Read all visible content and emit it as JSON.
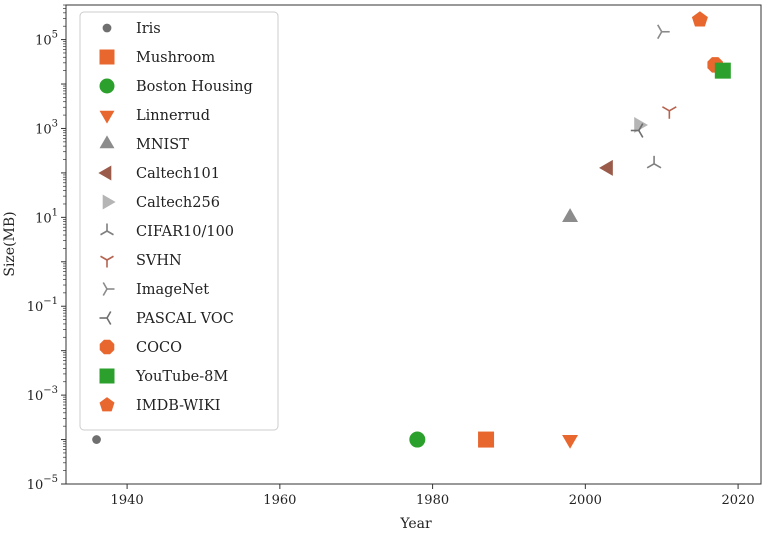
{
  "chart_data": {
    "type": "scatter",
    "xlabel": "Year",
    "ylabel": "Size(MB)",
    "yscale": "log",
    "xlim": [
      1932,
      2023
    ],
    "ylim": [
      1e-05,
      600000.0
    ],
    "x_ticks": [
      {
        "value": 1940,
        "label": "1940"
      },
      {
        "value": 1960,
        "label": "1960"
      },
      {
        "value": 1980,
        "label": "1980"
      },
      {
        "value": 2000,
        "label": "2000"
      },
      {
        "value": 2020,
        "label": "2020"
      }
    ],
    "y_ticks": [
      {
        "exp": -5,
        "base": "10",
        "power": "−5"
      },
      {
        "exp": -3,
        "base": "10",
        "power": "−3"
      },
      {
        "exp": -1,
        "base": "10",
        "power": "−1"
      },
      {
        "exp": 1,
        "base": "10",
        "power": "1"
      },
      {
        "exp": 3,
        "base": "10",
        "power": "3"
      },
      {
        "exp": 5,
        "base": "10",
        "power": "5"
      }
    ],
    "grid": false,
    "legend_position": "upper-left",
    "series": [
      {
        "name": "Iris",
        "marker": "dot",
        "color": "#6f6f6f",
        "points": [
          {
            "x": 1936,
            "y": 0.0001
          }
        ]
      },
      {
        "name": "Mushroom",
        "marker": "square",
        "color": "#e8672f",
        "points": [
          {
            "x": 1987,
            "y": 0.0001
          }
        ]
      },
      {
        "name": "Boston Housing",
        "marker": "circle",
        "color": "#2ca02c",
        "points": [
          {
            "x": 1978,
            "y": 0.0001
          }
        ]
      },
      {
        "name": "Linnerrud",
        "marker": "triangle-down",
        "color": "#e8672f",
        "points": [
          {
            "x": 1998,
            "y": 0.0001
          }
        ]
      },
      {
        "name": "MNIST",
        "marker": "triangle-up",
        "color": "#8c8c8c",
        "points": [
          {
            "x": 1998,
            "y": 10
          }
        ]
      },
      {
        "name": "Caltech101",
        "marker": "triangle-left",
        "color": "#9a5b4b",
        "points": [
          {
            "x": 2003,
            "y": 130
          }
        ]
      },
      {
        "name": "Caltech256",
        "marker": "triangle-right",
        "color": "#b5b5b5",
        "points": [
          {
            "x": 2007,
            "y": 1200
          }
        ]
      },
      {
        "name": "CIFAR10/100",
        "marker": "tri-down",
        "color": "#7f7f7f",
        "points": [
          {
            "x": 2009,
            "y": 160
          }
        ]
      },
      {
        "name": "SVHN",
        "marker": "tri-up",
        "color": "#b5634f",
        "points": [
          {
            "x": 2011,
            "y": 2500
          }
        ]
      },
      {
        "name": "ImageNet",
        "marker": "tri-left",
        "color": "#8a8a8a",
        "points": [
          {
            "x": 2010,
            "y": 150000
          }
        ]
      },
      {
        "name": "PASCAL VOC",
        "marker": "tri-right",
        "color": "#6f6f6f",
        "points": [
          {
            "x": 2007,
            "y": 900
          }
        ]
      },
      {
        "name": "COCO",
        "marker": "octagon",
        "color": "#e8672f",
        "points": [
          {
            "x": 2017,
            "y": 27000
          }
        ]
      },
      {
        "name": "YouTube-8M",
        "marker": "square",
        "color": "#2ca02c",
        "points": [
          {
            "x": 2018,
            "y": 20000
          }
        ]
      },
      {
        "name": "IMDB-WIKI",
        "marker": "pentagon",
        "color": "#e8672f",
        "points": [
          {
            "x": 2015,
            "y": 280000
          }
        ]
      }
    ]
  }
}
